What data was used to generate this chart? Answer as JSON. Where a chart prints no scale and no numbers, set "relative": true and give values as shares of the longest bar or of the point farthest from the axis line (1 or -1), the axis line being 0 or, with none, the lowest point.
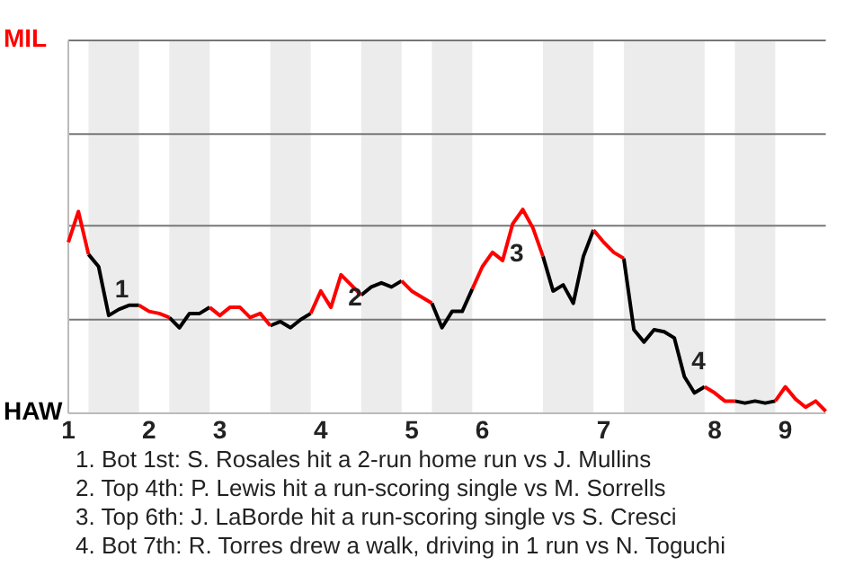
{
  "chart_data": {
    "type": "line",
    "relative": true,
    "categories": [
      "1",
      null,
      null,
      null,
      null,
      null,
      null,
      null,
      "2",
      null,
      null,
      null,
      null,
      null,
      null,
      "3",
      null,
      null,
      null,
      null,
      null,
      null,
      null,
      null,
      null,
      "4",
      null,
      null,
      null,
      null,
      null,
      null,
      null,
      null,
      "5",
      null,
      null,
      null,
      null,
      null,
      null,
      "6",
      null,
      null,
      null,
      null,
      null,
      null,
      null,
      null,
      null,
      null,
      null,
      "7",
      null,
      null,
      null,
      null,
      null,
      null,
      null,
      null,
      null,
      null,
      "8",
      null,
      null,
      null,
      null,
      null,
      null,
      "9",
      null,
      null,
      null,
      null
    ],
    "ref_lines": [
      {
        "axis": "y",
        "value": 0.46,
        "color": "#777777"
      },
      {
        "axis": "y",
        "value": 0.92,
        "color": "#777777"
      },
      {
        "axis": "y",
        "value": 1.37,
        "color": "#777777"
      },
      {
        "axis": "y",
        "value": 1.83,
        "color": "#777777"
      }
    ],
    "marker": "none",
    "line_style": "solid",
    "legend": "left",
    "series": [
      {
        "name": "MIL",
        "color": "#ff0000",
        "values": [
          0.84,
          0.99,
          0.78,
          null,
          null,
          null,
          null,
          0.53,
          0.5,
          0.49,
          0.47,
          null,
          null,
          null,
          0.52,
          0.48,
          0.52,
          0.52,
          0.47,
          0.49,
          0.43,
          null,
          null,
          null,
          0.49,
          0.6,
          0.52,
          0.68,
          0.63,
          0.58,
          null,
          null,
          null,
          0.65,
          0.6,
          0.57,
          0.54,
          null,
          null,
          null,
          0.61,
          0.72,
          0.79,
          0.75,
          0.93,
          1,
          0.91,
          0.77,
          null,
          null,
          null,
          null,
          0.9,
          0.84,
          0.79,
          0.76,
          null,
          null,
          null,
          null,
          null,
          null,
          null,
          0.13,
          0.1,
          0.06,
          0.06,
          null,
          null,
          null,
          0.06,
          0.13,
          0.07,
          0.03,
          0.06,
          0.01
        ]
      },
      {
        "name": "HAW",
        "color": "#000000",
        "values": [
          null,
          null,
          0.78,
          0.72,
          0.48,
          0.51,
          0.53,
          0.53,
          null,
          null,
          0.47,
          0.42,
          0.49,
          0.49,
          0.52,
          null,
          null,
          null,
          null,
          null,
          0.43,
          0.45,
          0.42,
          0.46,
          0.49,
          null,
          null,
          null,
          null,
          0.58,
          0.62,
          0.64,
          0.62,
          0.65,
          null,
          null,
          0.54,
          0.42,
          0.5,
          0.5,
          0.61,
          null,
          null,
          null,
          null,
          null,
          null,
          0.77,
          0.6,
          0.63,
          0.54,
          0.77,
          0.9,
          null,
          null,
          0.76,
          0.41,
          0.35,
          0.41,
          0.4,
          0.37,
          0.18,
          0.1,
          0.13,
          null,
          null,
          0.06,
          0.05,
          0.06,
          0.05,
          0.06,
          null,
          null,
          null,
          null,
          null
        ]
      }
    ],
    "annotations": [
      "1",
      "2",
      "3",
      "4",
      "1. Bot 1st: S. Rosales hit a 2-run home run vs J. Mullins",
      "2. Top 4th: P. Lewis hit a run-scoring single vs M. Sorrells",
      "3. Top 6th: J. LaBorde hit a run-scoring single vs S. Cresci",
      "4. Bot 7th: R. Torres drew a walk, driving in 1 run vs N. Toguchi"
    ]
  }
}
